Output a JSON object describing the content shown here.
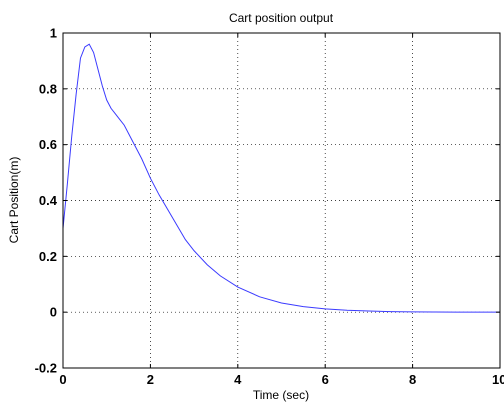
{
  "chart_data": {
    "type": "line",
    "title": "Cart position output",
    "xlabel": "Time (sec)",
    "ylabel": "Cart Position(m)",
    "xlim": [
      0,
      10
    ],
    "ylim": [
      -0.2,
      1
    ],
    "xticks": [
      "0",
      "2",
      "4",
      "6",
      "8",
      "10"
    ],
    "xtick_values": [
      0,
      2,
      4,
      6,
      8,
      10
    ],
    "yticks": [
      "-0.2",
      "0",
      "0.2",
      "0.4",
      "0.6",
      "0.8",
      "1"
    ],
    "ytick_values": [
      -0.2,
      0,
      0.2,
      0.4,
      0.6,
      0.8,
      1
    ],
    "grid": true,
    "series": [
      {
        "color": "#3b3bff",
        "x": [
          0,
          0.1,
          0.2,
          0.3,
          0.4,
          0.5,
          0.6,
          0.7,
          0.8,
          0.9,
          1.0,
          1.1,
          1.2,
          1.3,
          1.4,
          1.5,
          1.6,
          1.8,
          2.0,
          2.2,
          2.5,
          2.8,
          3.0,
          3.3,
          3.6,
          4.0,
          4.5,
          5.0,
          5.5,
          6.0,
          6.5,
          7.0,
          7.5,
          8.0,
          8.5,
          9.0,
          9.5,
          10.0
        ],
        "y": [
          0.3,
          0.46,
          0.63,
          0.78,
          0.91,
          0.95,
          0.96,
          0.93,
          0.87,
          0.81,
          0.76,
          0.73,
          0.71,
          0.69,
          0.67,
          0.64,
          0.61,
          0.55,
          0.48,
          0.42,
          0.34,
          0.26,
          0.22,
          0.17,
          0.13,
          0.09,
          0.055,
          0.033,
          0.02,
          0.012,
          0.007,
          0.004,
          0.002,
          0.001,
          0.0005,
          0.0003,
          0.0001,
          0.0
        ]
      }
    ]
  }
}
